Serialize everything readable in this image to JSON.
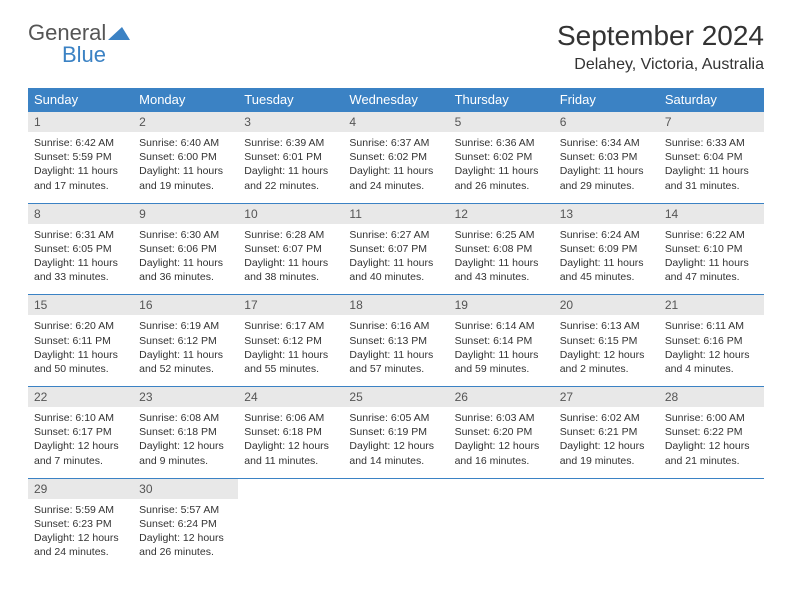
{
  "logo": {
    "line1": "General",
    "line2": "Blue"
  },
  "title": "September 2024",
  "location": "Delahey, Victoria, Australia",
  "colors": {
    "header_bg": "#3b82c4",
    "header_text": "#ffffff",
    "daynum_bg": "#e8e8e8",
    "border": "#3b82c4",
    "logo_blue": "#3b82c4",
    "logo_gray": "#555555"
  },
  "dow": [
    "Sunday",
    "Monday",
    "Tuesday",
    "Wednesday",
    "Thursday",
    "Friday",
    "Saturday"
  ],
  "days": [
    {
      "n": "1",
      "sr": "6:42 AM",
      "ss": "5:59 PM",
      "dl": "11 hours and 17 minutes."
    },
    {
      "n": "2",
      "sr": "6:40 AM",
      "ss": "6:00 PM",
      "dl": "11 hours and 19 minutes."
    },
    {
      "n": "3",
      "sr": "6:39 AM",
      "ss": "6:01 PM",
      "dl": "11 hours and 22 minutes."
    },
    {
      "n": "4",
      "sr": "6:37 AM",
      "ss": "6:02 PM",
      "dl": "11 hours and 24 minutes."
    },
    {
      "n": "5",
      "sr": "6:36 AM",
      "ss": "6:02 PM",
      "dl": "11 hours and 26 minutes."
    },
    {
      "n": "6",
      "sr": "6:34 AM",
      "ss": "6:03 PM",
      "dl": "11 hours and 29 minutes."
    },
    {
      "n": "7",
      "sr": "6:33 AM",
      "ss": "6:04 PM",
      "dl": "11 hours and 31 minutes."
    },
    {
      "n": "8",
      "sr": "6:31 AM",
      "ss": "6:05 PM",
      "dl": "11 hours and 33 minutes."
    },
    {
      "n": "9",
      "sr": "6:30 AM",
      "ss": "6:06 PM",
      "dl": "11 hours and 36 minutes."
    },
    {
      "n": "10",
      "sr": "6:28 AM",
      "ss": "6:07 PM",
      "dl": "11 hours and 38 minutes."
    },
    {
      "n": "11",
      "sr": "6:27 AM",
      "ss": "6:07 PM",
      "dl": "11 hours and 40 minutes."
    },
    {
      "n": "12",
      "sr": "6:25 AM",
      "ss": "6:08 PM",
      "dl": "11 hours and 43 minutes."
    },
    {
      "n": "13",
      "sr": "6:24 AM",
      "ss": "6:09 PM",
      "dl": "11 hours and 45 minutes."
    },
    {
      "n": "14",
      "sr": "6:22 AM",
      "ss": "6:10 PM",
      "dl": "11 hours and 47 minutes."
    },
    {
      "n": "15",
      "sr": "6:20 AM",
      "ss": "6:11 PM",
      "dl": "11 hours and 50 minutes."
    },
    {
      "n": "16",
      "sr": "6:19 AM",
      "ss": "6:12 PM",
      "dl": "11 hours and 52 minutes."
    },
    {
      "n": "17",
      "sr": "6:17 AM",
      "ss": "6:12 PM",
      "dl": "11 hours and 55 minutes."
    },
    {
      "n": "18",
      "sr": "6:16 AM",
      "ss": "6:13 PM",
      "dl": "11 hours and 57 minutes."
    },
    {
      "n": "19",
      "sr": "6:14 AM",
      "ss": "6:14 PM",
      "dl": "11 hours and 59 minutes."
    },
    {
      "n": "20",
      "sr": "6:13 AM",
      "ss": "6:15 PM",
      "dl": "12 hours and 2 minutes."
    },
    {
      "n": "21",
      "sr": "6:11 AM",
      "ss": "6:16 PM",
      "dl": "12 hours and 4 minutes."
    },
    {
      "n": "22",
      "sr": "6:10 AM",
      "ss": "6:17 PM",
      "dl": "12 hours and 7 minutes."
    },
    {
      "n": "23",
      "sr": "6:08 AM",
      "ss": "6:18 PM",
      "dl": "12 hours and 9 minutes."
    },
    {
      "n": "24",
      "sr": "6:06 AM",
      "ss": "6:18 PM",
      "dl": "12 hours and 11 minutes."
    },
    {
      "n": "25",
      "sr": "6:05 AM",
      "ss": "6:19 PM",
      "dl": "12 hours and 14 minutes."
    },
    {
      "n": "26",
      "sr": "6:03 AM",
      "ss": "6:20 PM",
      "dl": "12 hours and 16 minutes."
    },
    {
      "n": "27",
      "sr": "6:02 AM",
      "ss": "6:21 PM",
      "dl": "12 hours and 19 minutes."
    },
    {
      "n": "28",
      "sr": "6:00 AM",
      "ss": "6:22 PM",
      "dl": "12 hours and 21 minutes."
    },
    {
      "n": "29",
      "sr": "5:59 AM",
      "ss": "6:23 PM",
      "dl": "12 hours and 24 minutes."
    },
    {
      "n": "30",
      "sr": "5:57 AM",
      "ss": "6:24 PM",
      "dl": "12 hours and 26 minutes."
    }
  ],
  "labels": {
    "sunrise": "Sunrise:",
    "sunset": "Sunset:",
    "daylight": "Daylight:"
  },
  "layout": {
    "weeks": 5,
    "trailing_empty": 5
  }
}
